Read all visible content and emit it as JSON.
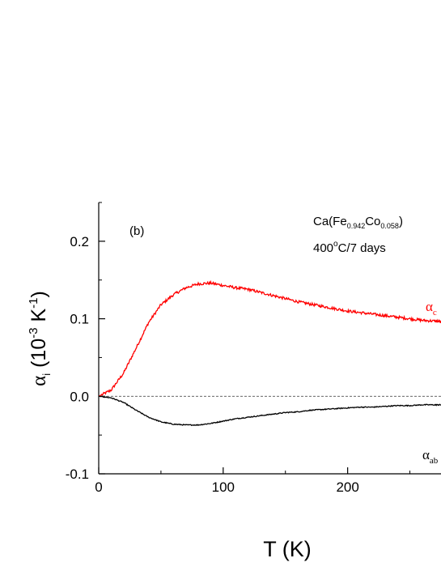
{
  "chart_data": {
    "type": "line",
    "panel_label": "(b)",
    "annotation_line1": {
      "main": "Ca(Fe",
      "sub1": "0.942",
      "mid": "Co",
      "sub2": "0.058",
      "end": ")"
    },
    "annotation_line2": {
      "pre": "400",
      "sup": "o",
      "post": "C/7 days"
    },
    "xlabel": "T (K)",
    "ylabel": {
      "alpha": "α",
      "sub": "i",
      "pre": " (10",
      "sup": "-3",
      "mid": " K",
      "sup2": "-1",
      "end": ")"
    },
    "xlim": [
      0,
      275
    ],
    "ylim": [
      -0.1,
      0.25
    ],
    "x_ticks": [
      0,
      100,
      200
    ],
    "x_tick_labels": [
      "0",
      "100",
      "200"
    ],
    "y_ticks": [
      -0.1,
      0.0,
      0.1,
      0.2
    ],
    "y_tick_labels": [
      "-0.1",
      "0.0",
      "0.1",
      "0.2"
    ],
    "zero_line": {
      "y": 0,
      "style": "dashed"
    },
    "series": [
      {
        "name": "α_c",
        "label_main": "α",
        "label_sub": "c",
        "color": "#ff0000",
        "x": [
          0,
          10,
          20,
          30,
          40,
          50,
          60,
          70,
          80,
          90,
          100,
          110,
          120,
          130,
          140,
          150,
          160,
          170,
          180,
          190,
          200,
          210,
          220,
          230,
          240,
          250,
          260,
          270,
          275
        ],
        "y": [
          0.0,
          0.008,
          0.03,
          0.062,
          0.095,
          0.118,
          0.131,
          0.14,
          0.145,
          0.146,
          0.143,
          0.14,
          0.138,
          0.134,
          0.13,
          0.126,
          0.122,
          0.119,
          0.116,
          0.113,
          0.11,
          0.108,
          0.106,
          0.104,
          0.102,
          0.1,
          0.098,
          0.097,
          0.096
        ]
      },
      {
        "name": "α_ab",
        "label_main": "α",
        "label_sub": "ab",
        "color": "#000000",
        "x": [
          0,
          10,
          20,
          30,
          40,
          50,
          60,
          70,
          80,
          90,
          100,
          110,
          120,
          130,
          140,
          150,
          160,
          170,
          180,
          190,
          200,
          210,
          220,
          230,
          240,
          250,
          260,
          270,
          275
        ],
        "y": [
          0.0,
          -0.002,
          -0.008,
          -0.018,
          -0.027,
          -0.033,
          -0.036,
          -0.037,
          -0.037,
          -0.035,
          -0.032,
          -0.029,
          -0.027,
          -0.025,
          -0.023,
          -0.021,
          -0.02,
          -0.018,
          -0.017,
          -0.016,
          -0.015,
          -0.014,
          -0.014,
          -0.013,
          -0.012,
          -0.012,
          -0.011,
          -0.011,
          -0.011
        ]
      }
    ]
  }
}
